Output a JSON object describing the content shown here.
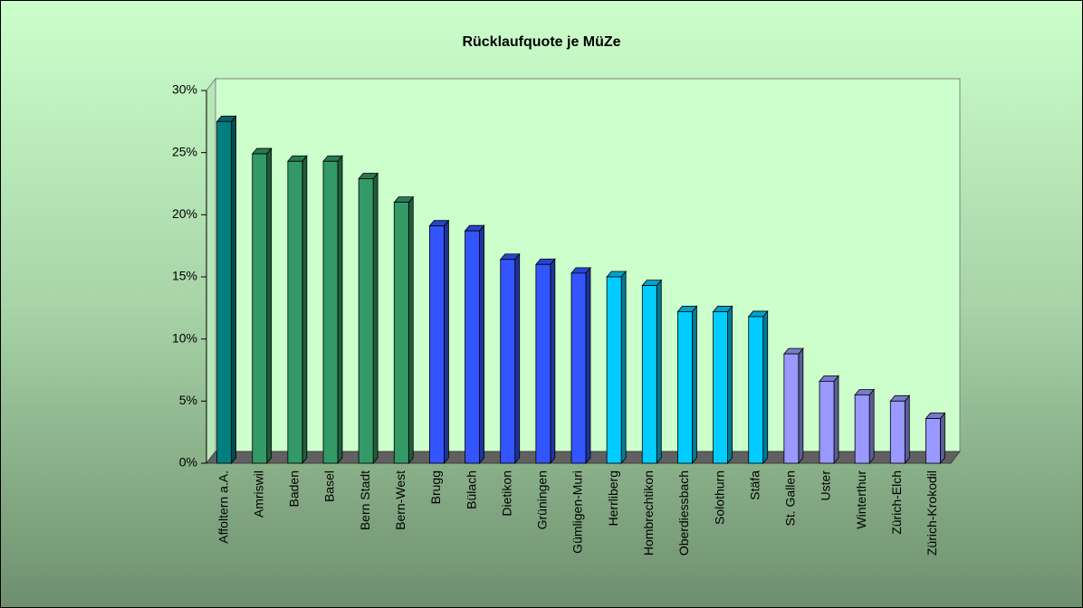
{
  "chart_data": {
    "type": "bar3d",
    "title": "Rücklaufquote je MüZe",
    "categories": [
      "Affoltern a.A.",
      "Amriswil",
      "Baden",
      "Basel",
      "Bern Stadt",
      "Bern-West",
      "Brugg",
      "Bülach",
      "Dietikon",
      "Grüningen",
      "Gümligen-Muri",
      "Herrliberg",
      "Hombrechtikon",
      "Oberdiessbach",
      "Solothurn",
      "Stäfa",
      "St. Gallen",
      "Uster",
      "Winterthur",
      "Zürich-Elch",
      "Zürich-Krokodil"
    ],
    "values": [
      27.5,
      24.9,
      24.3,
      24.3,
      22.9,
      21.0,
      19.1,
      18.7,
      16.4,
      16.0,
      15.3,
      15.0,
      14.3,
      12.2,
      12.2,
      11.8,
      8.8,
      6.6,
      5.5,
      5.0,
      3.6
    ],
    "colors": [
      "#007f7f",
      "#339966",
      "#339966",
      "#339966",
      "#339966",
      "#339966",
      "#3355ff",
      "#3355ff",
      "#3355ff",
      "#3355ff",
      "#3355ff",
      "#00ccff",
      "#00ccff",
      "#00ccff",
      "#00ccff",
      "#00ccff",
      "#9999ff",
      "#9999ff",
      "#9999ff",
      "#9999ff",
      "#9999ff"
    ],
    "ylim": [
      0,
      30
    ],
    "yticks": [
      {
        "value": 0,
        "label": "0%"
      },
      {
        "value": 5,
        "label": "5%"
      },
      {
        "value": 10,
        "label": "10%"
      },
      {
        "value": 15,
        "label": "15%"
      },
      {
        "value": 20,
        "label": "20%"
      },
      {
        "value": 25,
        "label": "25%"
      },
      {
        "value": 30,
        "label": "30%"
      }
    ]
  }
}
